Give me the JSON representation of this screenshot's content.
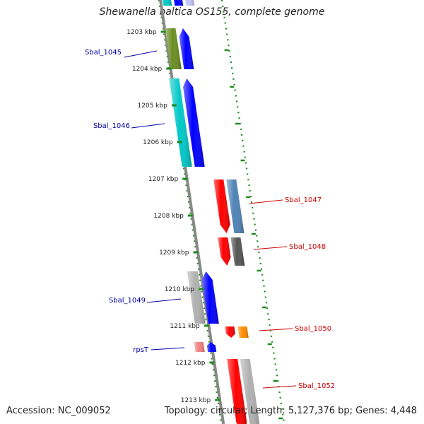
{
  "title": "Shewanella baltica OS155, complete genome",
  "accession": "Accession: NC_009052",
  "topology": "Topology: circular; Length: 5,127,376 bp; Genes: 4,448",
  "ticks": [
    "1203 kbp",
    "1204 kbp",
    "1205 kbp",
    "1206 kbp",
    "1207 kbp",
    "1208 kbp",
    "1209 kbp",
    "1210 kbp",
    "1211 kbp",
    "1212 kbp",
    "1213 kbp"
  ],
  "genes": [
    {
      "label": "Sbal_1045",
      "strand": "forward",
      "color": "#0000aa"
    },
    {
      "label": "Sbal_1046",
      "strand": "forward",
      "color": "#0000aa"
    },
    {
      "label": "Sbal_1047",
      "strand": "reverse",
      "color": "#cc0000"
    },
    {
      "label": "Sbal_1048",
      "strand": "reverse",
      "color": "#cc0000"
    },
    {
      "label": "Sbal_1049",
      "strand": "forward",
      "color": "#0000aa"
    },
    {
      "label": "Sbal_1050",
      "strand": "reverse",
      "color": "#cc0000"
    },
    {
      "label": "rpsT",
      "strand": "forward",
      "color": "#0000aa"
    },
    {
      "label": "Sbal_1052",
      "strand": "reverse",
      "color": "#cc0000"
    }
  ],
  "colors": {
    "backbone": "#888888",
    "dotted_border": "#1e8a1e",
    "tick_mark": "#1e8a1e",
    "forward_label": "#0000aa",
    "reverse_label": "#cc0000",
    "fwd_gene": "#0000ff",
    "rev_gene": "#ff0000",
    "olive": "#6b8e23",
    "cyan": "#00c8c8",
    "gray": "#b0b0b0",
    "steel": "#4f83b6",
    "dark_gray": "#555555",
    "orange": "#ff8c00",
    "pink": "#f08080",
    "lavender": "#c8c8ff"
  }
}
